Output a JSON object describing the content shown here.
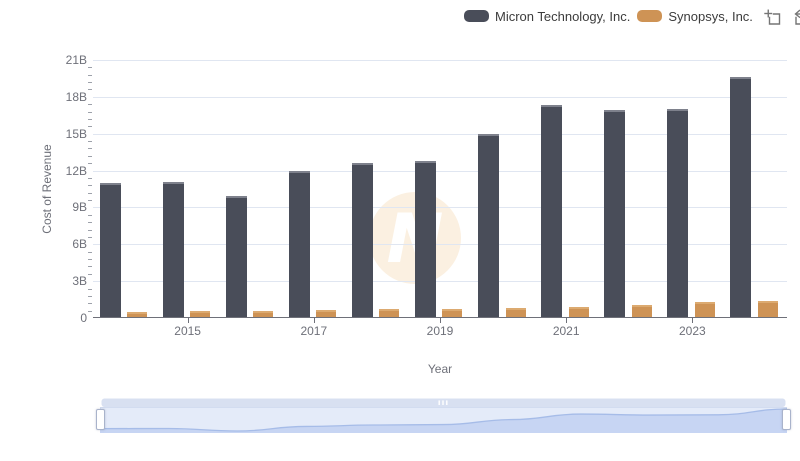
{
  "chart_data": {
    "type": "bar",
    "title": "",
    "xlabel": "Year",
    "ylabel": "Cost of Revenue",
    "categories": [
      "2014",
      "2015",
      "2016",
      "2017",
      "2018",
      "2019",
      "2020",
      "2021",
      "2022",
      "2023",
      "2024"
    ],
    "visible_x_tick_labels": [
      "2015",
      "2017",
      "2019",
      "2021",
      "2023"
    ],
    "series": [
      {
        "name": "Micron Technology, Inc.",
        "color": "#494D59",
        "values": [
          10.92,
          10.98,
          9.89,
          11.89,
          12.5,
          12.7,
          14.88,
          17.28,
          16.86,
          16.96,
          19.5
        ]
      },
      {
        "name": "Synopsys, Inc.",
        "color": "#CE9355",
        "values": [
          0.44,
          0.48,
          0.52,
          0.56,
          0.63,
          0.66,
          0.73,
          0.81,
          1.01,
          1.19,
          1.28
        ]
      }
    ],
    "unit": "B",
    "ylim": [
      0,
      21
    ],
    "ytick_step": 3,
    "ytick_labels": [
      "0",
      "3B",
      "6B",
      "9B",
      "12B",
      "15B",
      "18B",
      "21B"
    ],
    "grid": true,
    "legend_position": "top-right"
  },
  "toolbox": {
    "icons": [
      "data-zoom-icon",
      "restore-icon"
    ]
  },
  "datazoom": {
    "start_percent": 0,
    "end_percent": 100
  },
  "watermark": {
    "letter": "N",
    "circle_color": "#FBF0E1"
  },
  "colors": {
    "gridline": "#E0E6F1",
    "axis": "#6E7079",
    "axis_text": "#6E7079",
    "legend_text": "#3c3c3c"
  }
}
